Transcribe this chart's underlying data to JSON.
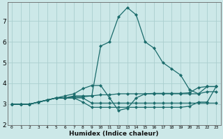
{
  "xlabel": "Humidex (Indice chaleur)",
  "bg_color": "#cce8e8",
  "grid_color": "#aacece",
  "line_color": "#1a6b6b",
  "marker": "D",
  "marker_size": 2.2,
  "linewidth": 0.9,
  "series": [
    [
      3.0,
      3.0,
      3.0,
      3.1,
      3.2,
      3.3,
      3.4,
      3.5,
      3.75,
      3.9,
      3.9,
      3.3,
      2.7,
      2.8,
      3.3,
      3.5,
      3.5,
      3.5,
      3.5,
      3.5,
      3.5,
      3.5,
      3.6,
      3.6
    ],
    [
      3.0,
      3.0,
      3.0,
      3.1,
      3.2,
      3.3,
      3.3,
      3.35,
      3.35,
      3.4,
      3.45,
      3.45,
      3.5,
      3.5,
      3.5,
      3.5,
      3.52,
      3.52,
      3.52,
      3.52,
      3.55,
      3.8,
      3.85,
      3.85
    ],
    [
      3.0,
      3.0,
      3.0,
      3.1,
      3.2,
      3.3,
      3.3,
      3.3,
      3.3,
      3.05,
      3.05,
      3.05,
      3.05,
      3.05,
      3.05,
      3.05,
      3.05,
      3.05,
      3.05,
      3.05,
      3.05,
      3.05,
      3.05,
      3.05
    ],
    [
      3.0,
      3.0,
      3.0,
      3.1,
      3.2,
      3.3,
      3.3,
      3.3,
      3.1,
      2.85,
      2.85,
      2.85,
      2.85,
      2.85,
      2.85,
      2.85,
      2.85,
      2.85,
      2.85,
      2.85,
      2.9,
      3.1,
      3.1,
      3.85
    ],
    [
      3.0,
      3.0,
      3.0,
      3.1,
      3.2,
      3.3,
      3.3,
      3.4,
      3.4,
      3.4,
      5.8,
      6.0,
      7.2,
      7.65,
      7.3,
      6.0,
      5.7,
      5.0,
      4.7,
      4.4,
      3.7,
      3.5,
      3.85,
      3.85
    ]
  ],
  "xlim": [
    -0.5,
    23.5
  ],
  "ylim": [
    2.0,
    7.9
  ],
  "yticks": [
    2,
    3,
    4,
    5,
    6,
    7
  ],
  "xticks": [
    0,
    1,
    2,
    3,
    4,
    5,
    6,
    7,
    8,
    9,
    10,
    11,
    12,
    13,
    14,
    15,
    16,
    17,
    18,
    19,
    20,
    21,
    22,
    23
  ]
}
